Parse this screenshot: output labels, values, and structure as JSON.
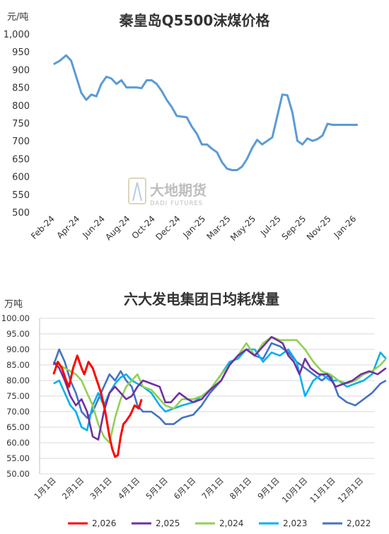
{
  "chart_data": [
    {
      "type": "line",
      "title": "秦皇岛Q5500沫煤价格",
      "ylabel": "元/吨",
      "ylim": [
        500,
        1000
      ],
      "yticks": [
        "1,000",
        "950",
        "900",
        "850",
        "800",
        "750",
        "700",
        "650",
        "600",
        "550",
        "500"
      ],
      "xticks": [
        "Feb-24",
        "Apr-24",
        "Jun-24",
        "Aug-24",
        "Oct-24",
        "Dec-24",
        "Jan-25",
        "Mar-25",
        "May-25",
        "Jul-25",
        "Sep-25",
        "Nov-25",
        "Jan-26"
      ],
      "grid": false,
      "color": "#5b9bd5",
      "series": [
        {
          "x": [
            0.0,
            0.25,
            0.5,
            0.7,
            0.9,
            1.1,
            1.3,
            1.5,
            1.7,
            1.9,
            2.1,
            2.3,
            2.5,
            2.7,
            2.9,
            3.1,
            3.3,
            3.5,
            3.7,
            3.9,
            4.1,
            4.3,
            4.5,
            4.7,
            4.9,
            5.1,
            5.3,
            5.5,
            5.7,
            5.9,
            6.1,
            6.3,
            6.5,
            6.7,
            6.9,
            7.1,
            7.3,
            7.5,
            7.7,
            7.9,
            8.1,
            8.3,
            8.5,
            8.7,
            8.9,
            9.1,
            9.3,
            9.5,
            9.7,
            9.9,
            10.1,
            10.3,
            10.5,
            10.7,
            10.9,
            11.1,
            11.3,
            11.5,
            11.7,
            11.9,
            12.1
          ],
          "y": [
            915,
            925,
            940,
            925,
            880,
            835,
            815,
            830,
            825,
            860,
            880,
            875,
            860,
            870,
            850,
            850,
            850,
            848,
            870,
            870,
            860,
            840,
            815,
            795,
            770,
            768,
            766,
            740,
            720,
            690,
            690,
            678,
            668,
            640,
            622,
            618,
            618,
            628,
            650,
            680,
            703,
            690,
            700,
            710,
            770,
            830,
            828,
            780,
            700,
            690,
            707,
            700,
            705,
            715,
            748,
            745,
            745,
            745,
            745,
            745,
            745
          ]
        }
      ]
    },
    {
      "type": "line",
      "title": "六大发电集团日均耗煤量",
      "ylabel": "万吨",
      "ylim": [
        50,
        100
      ],
      "yticks": [
        "100.00",
        "95.00",
        "90.00",
        "85.00",
        "80.00",
        "75.00",
        "70.00",
        "65.00",
        "60.00",
        "55.00",
        "50.00"
      ],
      "xticks": [
        "1月1日",
        "2月1日",
        "3月1日",
        "4月1日",
        "5月1日",
        "6月1日",
        "7月1日",
        "8月1日",
        "9月1日",
        "10月1日",
        "11月1日",
        "12月1日"
      ],
      "grid": true,
      "legend_position": "bottom",
      "series": [
        {
          "name": "2,026",
          "color": "#ff0000",
          "x": [
            0,
            0.15,
            0.3,
            0.45,
            0.55,
            0.7,
            0.85,
            1,
            1.1,
            1.25,
            1.4,
            1.55,
            1.7,
            1.85,
            2,
            2.1,
            2.2,
            2.3,
            2.4,
            2.5,
            2.6,
            2.75,
            2.9,
            3.05,
            3.15
          ],
          "y": [
            82,
            86,
            84,
            80,
            78,
            84,
            88,
            84,
            82,
            86,
            84,
            80,
            76,
            70,
            62,
            58,
            55.5,
            56,
            62,
            66,
            67,
            69,
            72,
            71,
            74
          ]
        },
        {
          "name": "2,025",
          "color": "#7030a0",
          "x": [
            0,
            0.2,
            0.4,
            0.6,
            0.8,
            1,
            1.2,
            1.4,
            1.6,
            1.8,
            2,
            2.2,
            2.4,
            2.6,
            2.8,
            3,
            3.2,
            3.5,
            3.8,
            4,
            4.2,
            4.5,
            4.8,
            5,
            5.3,
            5.6,
            6,
            6.3,
            6.6,
            6.9,
            7.2,
            7.5,
            7.8,
            8,
            8.2,
            8.4,
            8.6,
            8.8,
            9,
            9.2,
            9.5,
            9.8,
            10.1,
            10.4,
            10.7,
            11,
            11.3,
            11.6,
            11.9
          ],
          "y": [
            86,
            84,
            80,
            75,
            72,
            74,
            70,
            62,
            61,
            70,
            76,
            78,
            76,
            74,
            75,
            78,
            80,
            79,
            78,
            73,
            73,
            76,
            74,
            73,
            74,
            77,
            80,
            85,
            88,
            90,
            88,
            91,
            94,
            93,
            92,
            88,
            86,
            82,
            87,
            84,
            82,
            82,
            78,
            79,
            80,
            82,
            83,
            82,
            84
          ]
        },
        {
          "name": "2,024",
          "color": "#92d050",
          "x": [
            0,
            0.2,
            0.4,
            0.6,
            0.8,
            1,
            1.2,
            1.4,
            1.6,
            1.8,
            2,
            2.2,
            2.4,
            2.6,
            2.8,
            3,
            3.2,
            3.5,
            3.8,
            4,
            4.3,
            4.6,
            5,
            5.3,
            5.6,
            6,
            6.3,
            6.6,
            6.9,
            7.2,
            7.5,
            7.8,
            8.1,
            8.4,
            8.7,
            9,
            9.3,
            9.6,
            9.9,
            10.2,
            10.5,
            10.8,
            11.1,
            11.4,
            11.7,
            11.9
          ],
          "y": [
            86,
            85,
            84,
            83,
            82,
            80,
            76,
            72,
            66,
            62,
            60,
            68,
            74,
            78,
            80,
            82,
            78,
            77,
            74,
            72,
            71,
            74,
            74,
            75,
            77,
            82,
            85,
            88,
            92,
            88,
            92,
            94,
            93,
            93,
            93,
            90,
            86,
            83,
            82,
            80,
            79,
            80,
            82,
            83,
            85,
            87
          ]
        },
        {
          "name": "2,023",
          "color": "#00b0f0",
          "x": [
            0,
            0.2,
            0.4,
            0.6,
            0.8,
            1,
            1.2,
            1.4,
            1.6,
            1.8,
            2,
            2.2,
            2.4,
            2.6,
            2.8,
            3,
            3.2,
            3.5,
            3.8,
            4,
            4.3,
            4.6,
            5,
            5.3,
            5.6,
            6,
            6.3,
            6.6,
            6.9,
            7.2,
            7.5,
            7.8,
            8.1,
            8.4,
            8.7,
            9,
            9.3,
            9.6,
            9.9,
            10.2,
            10.5,
            10.8,
            11.1,
            11.4,
            11.7,
            11.9
          ],
          "y": [
            79,
            80,
            76,
            72,
            70,
            65,
            64,
            72,
            76,
            72,
            76,
            79,
            81,
            82,
            80,
            79,
            78,
            76,
            72,
            70,
            71,
            72,
            73,
            75,
            77,
            82,
            86,
            87,
            90,
            90,
            86,
            89,
            88,
            90,
            86,
            75,
            80,
            82,
            80,
            80,
            78,
            79,
            80,
            82,
            89,
            87
          ]
        },
        {
          "name": "2,022",
          "color": "#4472c4",
          "x": [
            0,
            0.2,
            0.4,
            0.6,
            0.8,
            1,
            1.2,
            1.4,
            1.6,
            1.8,
            2,
            2.2,
            2.4,
            2.6,
            2.8,
            3,
            3.2,
            3.5,
            3.8,
            4,
            4.3,
            4.6,
            5,
            5.3,
            5.6,
            6,
            6.3,
            6.6,
            6.9,
            7.2,
            7.5,
            7.8,
            8.1,
            8.4,
            8.7,
            9,
            9.3,
            9.6,
            9.9,
            10.2,
            10.5,
            10.8,
            11.1,
            11.4,
            11.7,
            11.9
          ],
          "y": [
            85,
            90,
            86,
            80,
            76,
            70,
            68,
            70,
            74,
            78,
            82,
            80,
            83,
            80,
            78,
            72,
            70,
            70,
            68,
            66,
            66,
            68,
            69,
            72,
            76,
            80,
            85,
            88,
            90,
            88,
            87,
            92,
            91,
            89,
            86,
            84,
            82,
            80,
            82,
            75,
            73,
            72,
            74,
            76,
            79,
            80
          ]
        }
      ]
    }
  ],
  "watermark": {
    "main": "大地期货",
    "sub": "DADI FUTURES"
  }
}
